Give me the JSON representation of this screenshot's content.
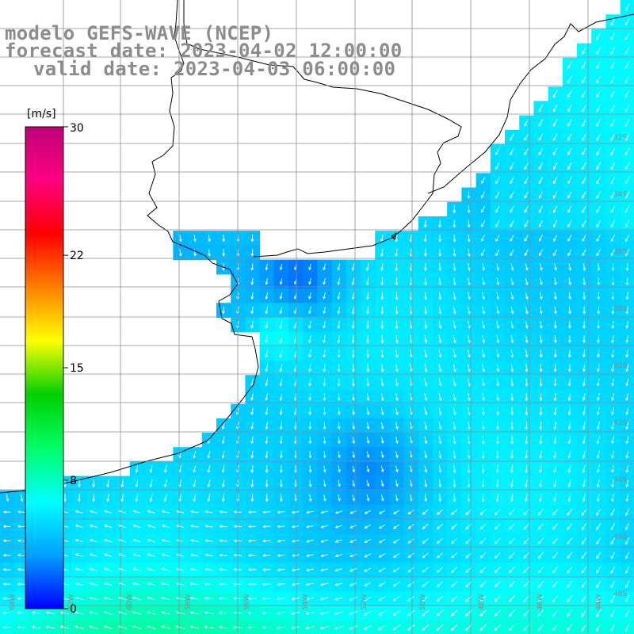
{
  "title": {
    "line1": "modelo GEFS-WAVE (NCEP)",
    "line2": "forecast date: 2023-04-02 12:00:00",
    "line3": "valid date: 2023-04-03 06:00:00"
  },
  "colorbar": {
    "unit": "[m/s]",
    "ticks": [
      {
        "label": "30",
        "value": 30
      },
      {
        "label": "22",
        "value": 22
      },
      {
        "label": "15",
        "value": 15
      },
      {
        "label": "8",
        "value": 8
      },
      {
        "label": "0",
        "value": 0
      }
    ],
    "range": [
      0,
      30
    ],
    "colors": [
      "#0000ff",
      "#00a0ff",
      "#00ffff",
      "#00ff66",
      "#00d000",
      "#ffff00",
      "#ff8000",
      "#ff0000",
      "#ff0080",
      "#c0007a"
    ]
  },
  "map": {
    "land_color": "#ffffff",
    "coast_color": "#000000",
    "grid_color": "#999999",
    "grid_labels_right": [
      "32S",
      "34S",
      "36S",
      "38S",
      "40S",
      "42S",
      "44S",
      "46S",
      "48S"
    ],
    "grid_labels_bottom": [
      "64W",
      "62W",
      "60W",
      "58W",
      "56W",
      "54W",
      "52W",
      "50W",
      "48W",
      "46W",
      "44W"
    ]
  }
}
